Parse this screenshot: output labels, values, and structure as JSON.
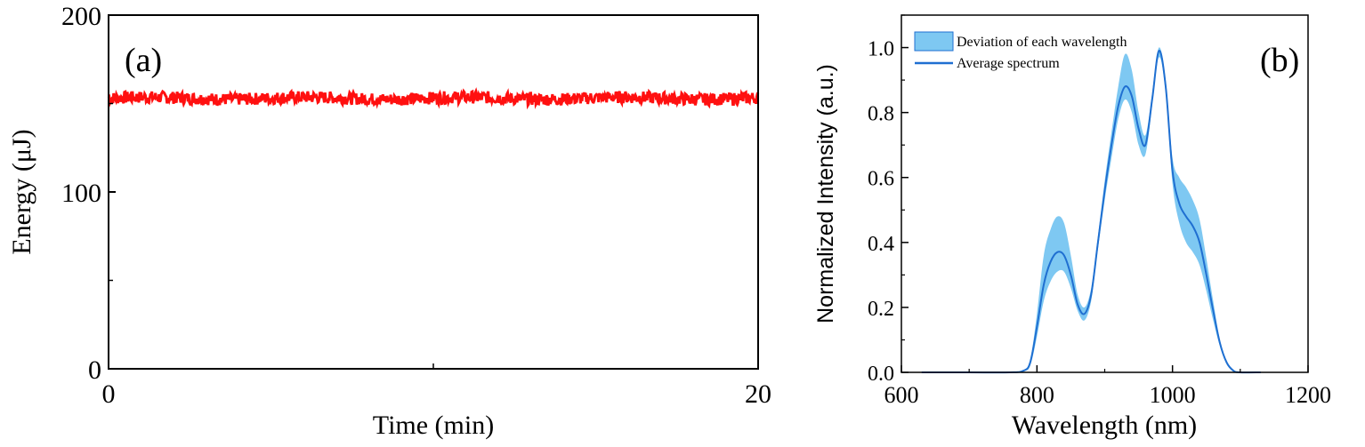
{
  "chart_data": [
    {
      "type": "line",
      "panel_label": "(a)",
      "xlabel": "Time (min)",
      "ylabel": "Energy (μJ)",
      "xlim": [
        0,
        20
      ],
      "ylim": [
        0,
        200
      ],
      "x_ticks": [
        0,
        20
      ],
      "x_tick_labels": [
        "0",
        "20"
      ],
      "y_ticks": [
        0,
        100,
        200
      ],
      "y_tick_labels": [
        "0",
        "100",
        "200"
      ],
      "series": [
        {
          "mean": 153,
          "noise_amplitude": 3.5,
          "x_start": 0,
          "x_end": 20,
          "color": "#ff1010"
        }
      ]
    },
    {
      "type": "area",
      "panel_label": "(b)",
      "xlabel": "Wavelength (nm)",
      "ylabel": "Normalized Intensity (a.u.)",
      "xlim": [
        600,
        1200
      ],
      "ylim": [
        0,
        1.1
      ],
      "x_ticks": [
        600,
        800,
        1000,
        1200
      ],
      "x_tick_labels": [
        "600",
        "800",
        "1000",
        "1200"
      ],
      "y_ticks": [
        0,
        0.2,
        0.4,
        0.6,
        0.8,
        1.0
      ],
      "y_tick_labels": [
        "0.0",
        "0.2",
        "0.4",
        "0.6",
        "0.8",
        "1.0"
      ],
      "legend": {
        "position": "top-left",
        "entries": [
          "Deviation of each wavelength",
          "Average spectrum"
        ]
      },
      "x": [
        630,
        700,
        760,
        780,
        790,
        800,
        810,
        820,
        830,
        840,
        850,
        860,
        870,
        880,
        890,
        900,
        910,
        920,
        930,
        940,
        950,
        960,
        970,
        980,
        990,
        1000,
        1010,
        1020,
        1030,
        1040,
        1050,
        1060,
        1070,
        1080,
        1090,
        1100,
        1130
      ],
      "average": [
        0.0,
        0.0,
        0.0,
        0.005,
        0.03,
        0.14,
        0.27,
        0.34,
        0.37,
        0.36,
        0.3,
        0.21,
        0.18,
        0.24,
        0.4,
        0.56,
        0.7,
        0.82,
        0.88,
        0.85,
        0.75,
        0.7,
        0.84,
        0.99,
        0.88,
        0.62,
        0.52,
        0.48,
        0.45,
        0.4,
        0.3,
        0.19,
        0.09,
        0.03,
        0.005,
        0.0,
        0.0
      ],
      "upper": [
        0.0,
        0.0,
        0.0,
        0.006,
        0.04,
        0.18,
        0.36,
        0.44,
        0.48,
        0.46,
        0.36,
        0.24,
        0.2,
        0.26,
        0.42,
        0.59,
        0.74,
        0.88,
        0.98,
        0.93,
        0.8,
        0.73,
        0.86,
        1.0,
        0.9,
        0.66,
        0.6,
        0.57,
        0.53,
        0.47,
        0.35,
        0.22,
        0.1,
        0.035,
        0.006,
        0.0,
        0.0
      ],
      "lower": [
        0.0,
        0.0,
        0.0,
        0.004,
        0.02,
        0.11,
        0.22,
        0.28,
        0.31,
        0.31,
        0.26,
        0.19,
        0.16,
        0.22,
        0.38,
        0.53,
        0.66,
        0.78,
        0.84,
        0.8,
        0.7,
        0.67,
        0.82,
        0.97,
        0.86,
        0.58,
        0.46,
        0.4,
        0.37,
        0.33,
        0.25,
        0.16,
        0.08,
        0.025,
        0.004,
        0.0,
        0.0
      ],
      "band_color": "#7ec8f2",
      "line_color": "#1f6fd1"
    }
  ]
}
